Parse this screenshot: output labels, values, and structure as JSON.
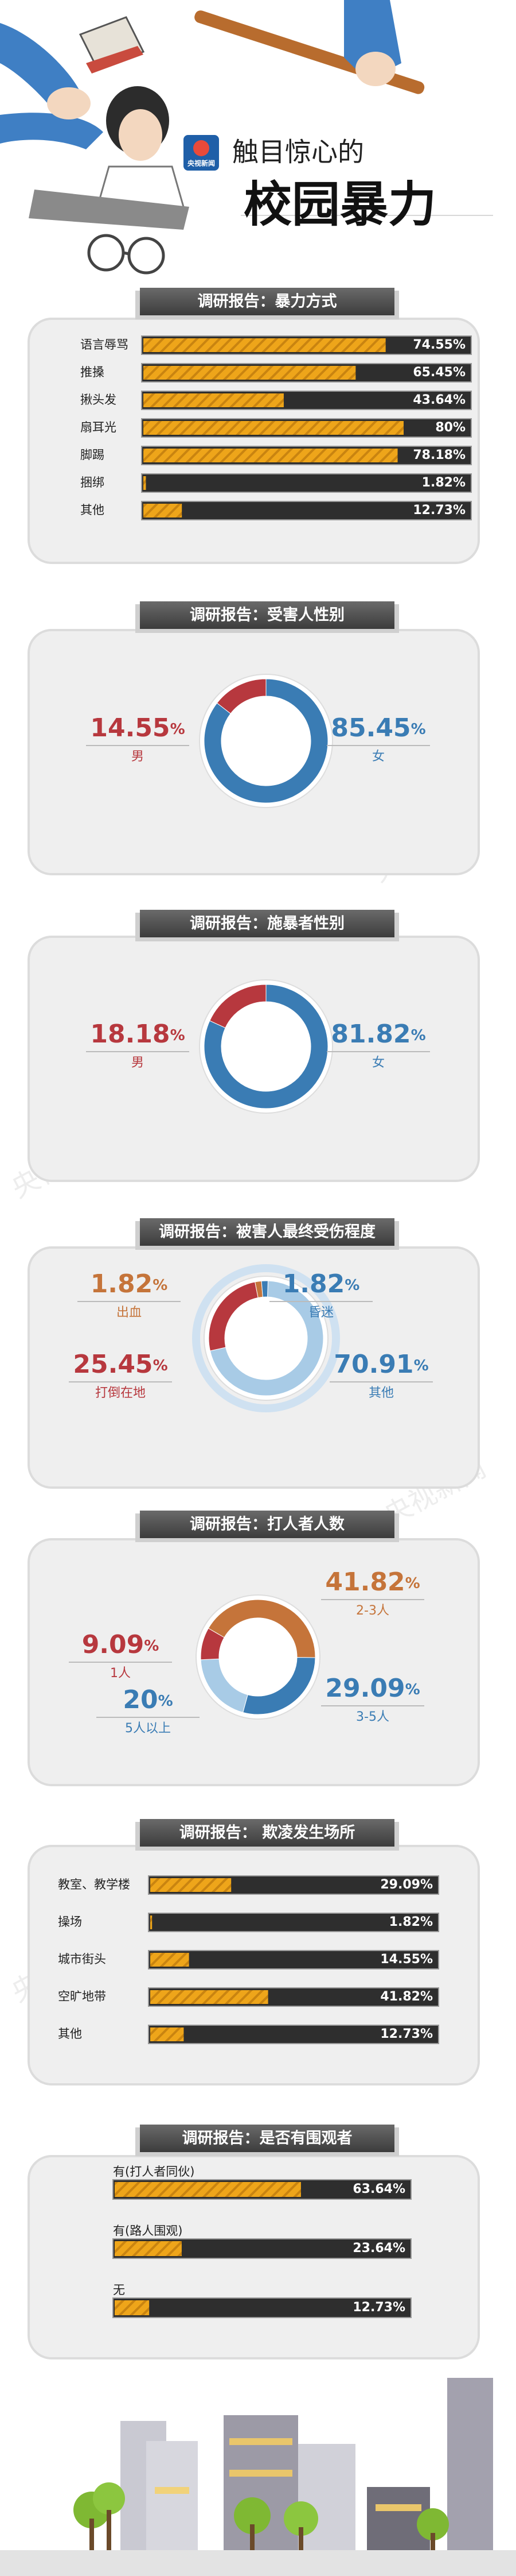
{
  "header": {
    "title_small": "触目惊心的",
    "title_big": "校园暴力",
    "logo": "央视新闻",
    "watermark": "央视新闻"
  },
  "chart_data": [
    {
      "type": "bar",
      "title": "调研报告：暴力方式",
      "color": "#eea51a",
      "track_color": "#2e2e2e",
      "xlim": [
        0,
        100
      ],
      "categories": [
        "语言辱骂",
        "推搡",
        "揪头发",
        "扇耳光",
        "脚踢",
        "捆绑",
        "其他"
      ],
      "values": [
        74.55,
        65.45,
        43.64,
        80,
        78.18,
        1.82,
        12.73
      ],
      "value_labels": [
        "74.55%",
        "65.45%",
        "43.64%",
        "80%",
        "78.18%",
        "1.82%",
        "12.73%"
      ]
    },
    {
      "type": "donut",
      "title": "调研报告：受害人性别",
      "unit": "%",
      "categories": [
        "女",
        "男"
      ],
      "values": [
        85.45,
        14.55
      ],
      "colors": [
        "#3a7cb4",
        "#b7383e"
      ]
    },
    {
      "type": "donut",
      "title": "调研报告：施暴者性别",
      "unit": "%",
      "categories": [
        "女",
        "男"
      ],
      "values": [
        81.82,
        18.18
      ],
      "colors": [
        "#3a7cb4",
        "#b7383e"
      ]
    },
    {
      "type": "donut",
      "title": "调研报告：被害人最终受伤程度",
      "unit": "%",
      "categories": [
        "其他",
        "打倒在地",
        "出血",
        "昏迷"
      ],
      "values": [
        70.91,
        25.45,
        1.82,
        1.82
      ],
      "colors": [
        "#a8cbe6",
        "#b7383e",
        "#c5743a",
        "#3a7cb4"
      ]
    },
    {
      "type": "donut",
      "title": "调研报告：打人者人数",
      "unit": "%",
      "categories": [
        "2-3人",
        "3-5人",
        "5人以上",
        "1人"
      ],
      "values": [
        41.82,
        29.09,
        20,
        9.09
      ],
      "colors": [
        "#c5743a",
        "#3a7cb4",
        "#a8cbe6",
        "#b7383e"
      ]
    },
    {
      "type": "bar",
      "title": "调研报告： 欺凌发生场所",
      "color": "#eea51a",
      "track_color": "#2e2e2e",
      "xlim": [
        0,
        100
      ],
      "categories": [
        "教室、教学楼",
        "操场",
        "城市街头",
        "空旷地带",
        "其他"
      ],
      "values": [
        29.09,
        1.82,
        14.55,
        41.82,
        12.73
      ],
      "value_labels": [
        "29.09%",
        "1.82%",
        "14.55%",
        "41.82%",
        "12.73%"
      ]
    },
    {
      "type": "bar",
      "title": "调研报告：是否有围观者",
      "color": "#eea51a",
      "track_color": "#2e2e2e",
      "xlim": [
        0,
        100
      ],
      "categories": [
        "有(打人者同伙)",
        "有(路人围观)",
        "无"
      ],
      "values": [
        63.64,
        23.64,
        12.73
      ],
      "value_labels": [
        "63.64%",
        "23.64%",
        "12.73%"
      ]
    }
  ]
}
